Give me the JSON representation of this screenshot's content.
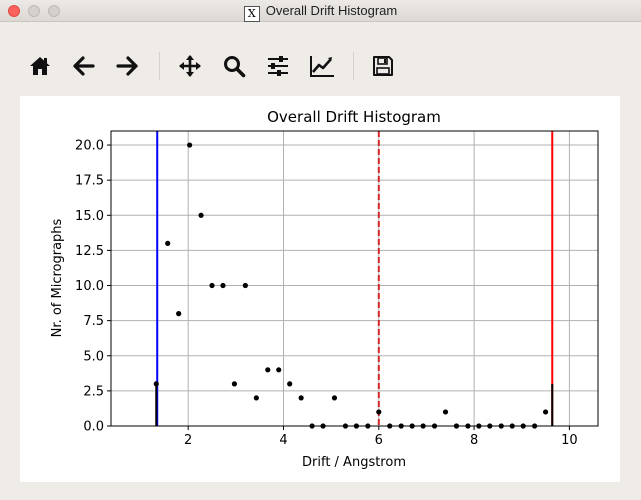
{
  "window": {
    "title": "Overall Drift Histogram",
    "app_icon": "x11-icon"
  },
  "toolbar": {
    "buttons": [
      {
        "name": "home-button",
        "icon": "home-icon"
      },
      {
        "name": "back-button",
        "icon": "arrow-left-icon"
      },
      {
        "name": "forward-button",
        "icon": "arrow-right-icon"
      },
      {
        "name": "pan-button",
        "icon": "move-icon"
      },
      {
        "name": "zoom-button",
        "icon": "magnifier-icon"
      },
      {
        "name": "subplots-button",
        "icon": "sliders-icon"
      },
      {
        "name": "edit-axis-button",
        "icon": "line-chart-icon"
      },
      {
        "name": "save-button",
        "icon": "floppy-disk-icon"
      }
    ]
  },
  "chart_data": {
    "type": "scatter",
    "title": "Overall Drift Histogram",
    "xlabel": "Drift / Angstrom",
    "ylabel": "Nr. of Micrographs",
    "xlim": [
      0.38,
      10.6
    ],
    "ylim": [
      0,
      21
    ],
    "xticks": [
      2,
      4,
      6,
      8,
      10
    ],
    "xtick_labels": [
      "2",
      "4",
      "6",
      "8",
      "10"
    ],
    "yticks": [
      0,
      2.5,
      5,
      7.5,
      10,
      12.5,
      15,
      17.5,
      20
    ],
    "ytick_labels": [
      "0.0",
      "2.5",
      "5.0",
      "7.5",
      "10.0",
      "12.5",
      "15.0",
      "17.5",
      "20.0"
    ],
    "grid": true,
    "points": {
      "x": [
        1.33,
        1.57,
        1.8,
        2.03,
        2.27,
        2.5,
        2.73,
        2.97,
        3.2,
        3.43,
        3.67,
        3.9,
        4.13,
        4.37,
        4.6,
        4.83,
        5.07,
        5.3,
        5.53,
        5.77,
        6.0,
        6.23,
        6.47,
        6.7,
        6.93,
        7.17,
        7.4,
        7.63,
        7.87,
        8.1,
        8.33,
        8.57,
        8.8,
        9.03,
        9.27,
        9.5
      ],
      "y": [
        3,
        13,
        8,
        20,
        15,
        10,
        10,
        3,
        10,
        2,
        4,
        4,
        3,
        2,
        0,
        0,
        2,
        0,
        0,
        0,
        1,
        0,
        0,
        0,
        0,
        0,
        1,
        0,
        0,
        0,
        0,
        0,
        0,
        0,
        0,
        1
      ],
      "color": "#000000"
    },
    "stems": [
      {
        "x": 1.33,
        "y": 3
      },
      {
        "x": 9.64,
        "y": 3
      }
    ],
    "vlines": [
      {
        "x": 1.35,
        "color": "#0000ff",
        "style": "solid"
      },
      {
        "x": 6.0,
        "color": "#d62728",
        "style": "dashed"
      },
      {
        "x": 9.64,
        "color": "#ff0000",
        "style": "solid"
      }
    ]
  }
}
